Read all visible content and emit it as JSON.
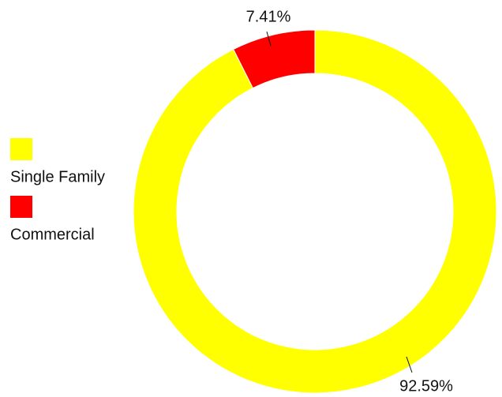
{
  "chart_data": {
    "type": "pie",
    "donut": true,
    "categories": [
      "Single Family",
      "Commercial"
    ],
    "values": [
      92.59,
      7.41
    ],
    "value_labels": [
      "92.59%",
      "7.41%"
    ],
    "colors": [
      "#ffff00",
      "#ff0000"
    ],
    "legend": "left"
  }
}
